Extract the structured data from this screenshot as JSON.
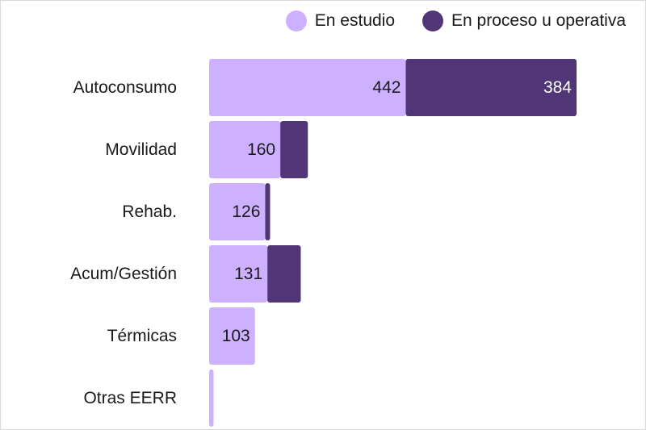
{
  "chart_data": {
    "type": "bar",
    "orientation": "horizontal",
    "stacked": true,
    "title": "",
    "xlabel": "",
    "ylabel": "",
    "categories": [
      "Autoconsumo",
      "Movilidad",
      "Rehab.",
      "Acum/Gestión",
      "Térmicas",
      "Otras EERR"
    ],
    "series": [
      {
        "name": "En estudio",
        "color": "#cdb0ff",
        "values": [
          442,
          160,
          126,
          131,
          103,
          10
        ],
        "labels": [
          "442",
          "160",
          "126",
          "131",
          "103",
          ""
        ]
      },
      {
        "name": "En proceso u operativa",
        "color": "#513677",
        "values": [
          384,
          62,
          11,
          75,
          0,
          0
        ],
        "labels": [
          "384",
          "",
          "",
          "",
          "",
          ""
        ]
      }
    ],
    "xlim": [
      0,
      826
    ],
    "grid": false,
    "legend_position": "top-right",
    "label_colors": {
      "on_light": "#1a1a1a",
      "on_dark": "#ffffff"
    }
  }
}
